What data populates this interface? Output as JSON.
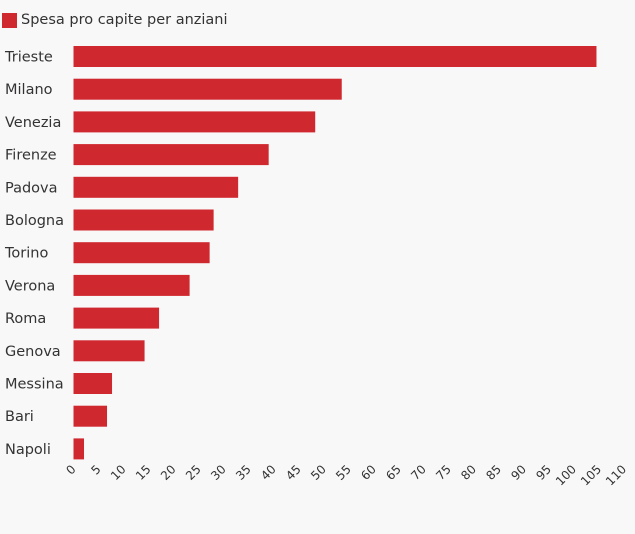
{
  "chart_data": {
    "type": "bar",
    "orientation": "horizontal",
    "title": "",
    "xlabel": "",
    "ylabel": "",
    "legend": {
      "position": "top-left",
      "entries": [
        "Spesa pro capite per anziani"
      ]
    },
    "categories": [
      "Trieste",
      "Milano",
      "Venezia",
      "Firenze",
      "Padova",
      "Bologna",
      "Torino",
      "Verona",
      "Roma",
      "Genova",
      "Messina",
      "Bari",
      "Napoli"
    ],
    "series": [
      {
        "name": "Spesa pro capite per anziani",
        "color": "#d0282f",
        "values": [
          104.5,
          53.6,
          48.3,
          39,
          32.9,
          28,
          27.2,
          23.2,
          17.1,
          14.2,
          7.7,
          6.7,
          2.1
        ]
      }
    ],
    "xlim": [
      0,
      110
    ],
    "xticks": [
      "0",
      "5",
      "10",
      "15",
      "20",
      "25",
      "30",
      "35",
      "40",
      "45",
      "50",
      "55",
      "60",
      "65",
      "70",
      "75",
      "80",
      "85",
      "90",
      "95",
      "100",
      "105",
      "110"
    ],
    "grid": false
  }
}
